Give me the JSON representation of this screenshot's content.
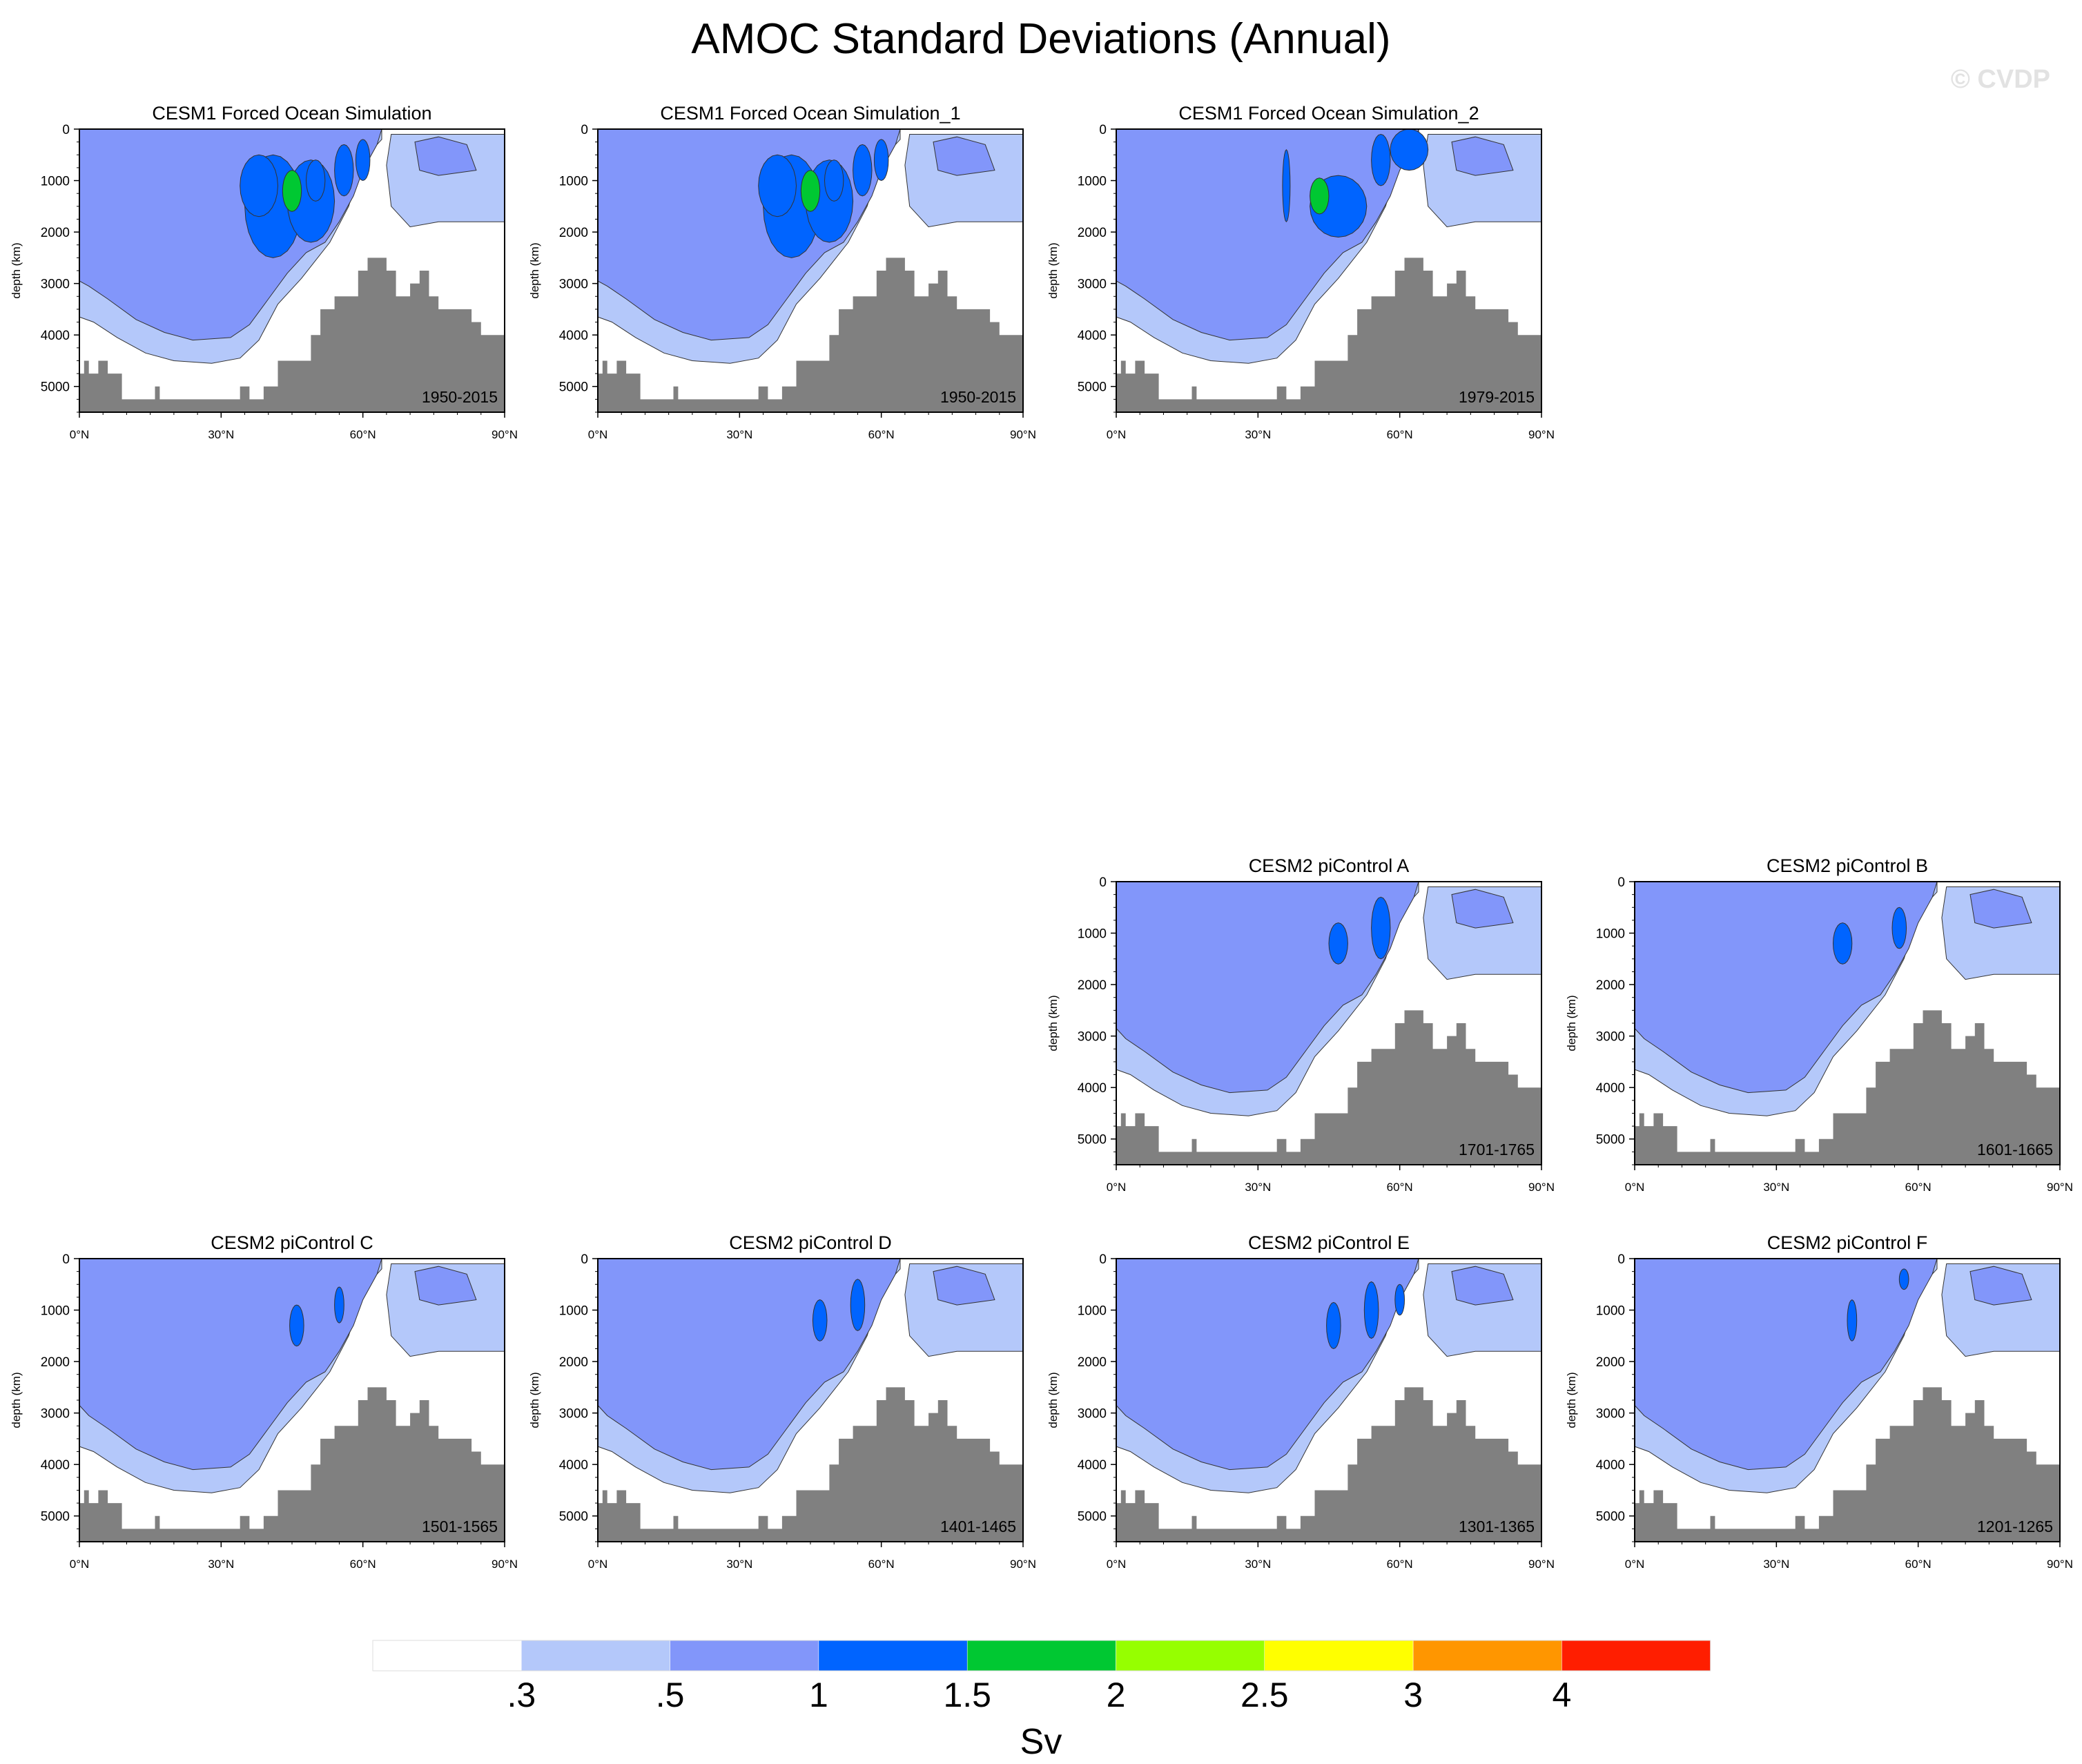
{
  "title": "AMOC Standard Deviations (Annual)",
  "watermark": "© CVDP",
  "panels": [
    {
      "title": "CESM1 Forced Ocean Simulation",
      "period": "1950-2015"
    },
    {
      "title": "CESM1 Forced Ocean Simulation_1",
      "period": "1950-2015"
    },
    {
      "title": "CESM1 Forced Ocean Simulation_2",
      "period": "1979-2015"
    },
    {
      "title": "CESM2 piControl A",
      "period": "1701-1765"
    },
    {
      "title": "CESM2 piControl B",
      "period": "1601-1665"
    },
    {
      "title": "CESM2 piControl C",
      "period": "1501-1565"
    },
    {
      "title": "CESM2 piControl D",
      "period": "1401-1465"
    },
    {
      "title": "CESM2 piControl E",
      "period": "1301-1365"
    },
    {
      "title": "CESM2 piControl F",
      "period": "1201-1265"
    }
  ],
  "colorbar": {
    "label": "Sv",
    "ticks": [
      ".3",
      ".5",
      "1",
      "1.5",
      "2",
      "2.5",
      "3",
      "4"
    ],
    "colors": [
      "#ffffff",
      "#b4c8fa",
      "#8296fa",
      "#0064ff",
      "#00c832",
      "#96ff00",
      "#ffff00",
      "#ff9600",
      "#ff1e00"
    ]
  },
  "chart_data": {
    "type": "heatmap",
    "ylabel": "depth (km)",
    "xticks": [
      "0°N",
      "30°N",
      "60°N",
      "90°N"
    ],
    "yticks": [
      "0",
      "1000",
      "2000",
      "3000",
      "4000",
      "5000"
    ],
    "xlim": [
      0,
      90
    ],
    "ylim": [
      5500,
      0
    ],
    "levels": [
      0.3,
      0.5,
      1,
      1.5,
      2,
      2.5,
      3,
      4
    ],
    "units": "Sv",
    "colors": {
      "land": "#808080",
      "contour_line": "#333333"
    }
  }
}
